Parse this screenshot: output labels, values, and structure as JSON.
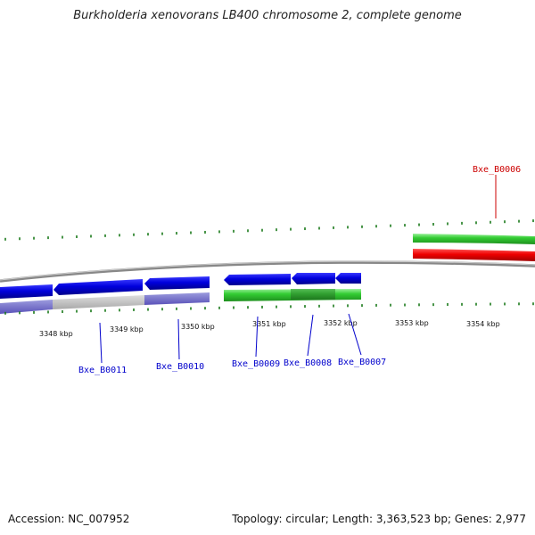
{
  "title": "Burkholderia xenovorans LB400 chromosome 2, complete genome",
  "footer": {
    "accession": "Accession: NC_007952",
    "summary": "Topology: circular; Length: 3,363,523 bp; Genes: 2,977"
  },
  "ticks": [
    "3348 kbp",
    "3349 kbp",
    "3350 kbp",
    "3351 kbp",
    "3352 kbp",
    "3353 kbp",
    "3354 kbp"
  ],
  "genes": [
    {
      "name": "Bxe_B0006",
      "color": "#cc0000"
    },
    {
      "name": "Bxe_B0007",
      "color": "#0000cc"
    },
    {
      "name": "Bxe_B0008",
      "color": "#0000cc"
    },
    {
      "name": "Bxe_B0009",
      "color": "#0000cc"
    },
    {
      "name": "Bxe_B0010",
      "color": "#0000cc"
    },
    {
      "name": "Bxe_B0011",
      "color": "#0000cc"
    }
  ],
  "colors": {
    "forward_cds": "#0000dd",
    "reverse_cds": "#22cc22",
    "rna": "#ee0000",
    "tick": "#1a7a1a",
    "backbone": "#888888"
  }
}
